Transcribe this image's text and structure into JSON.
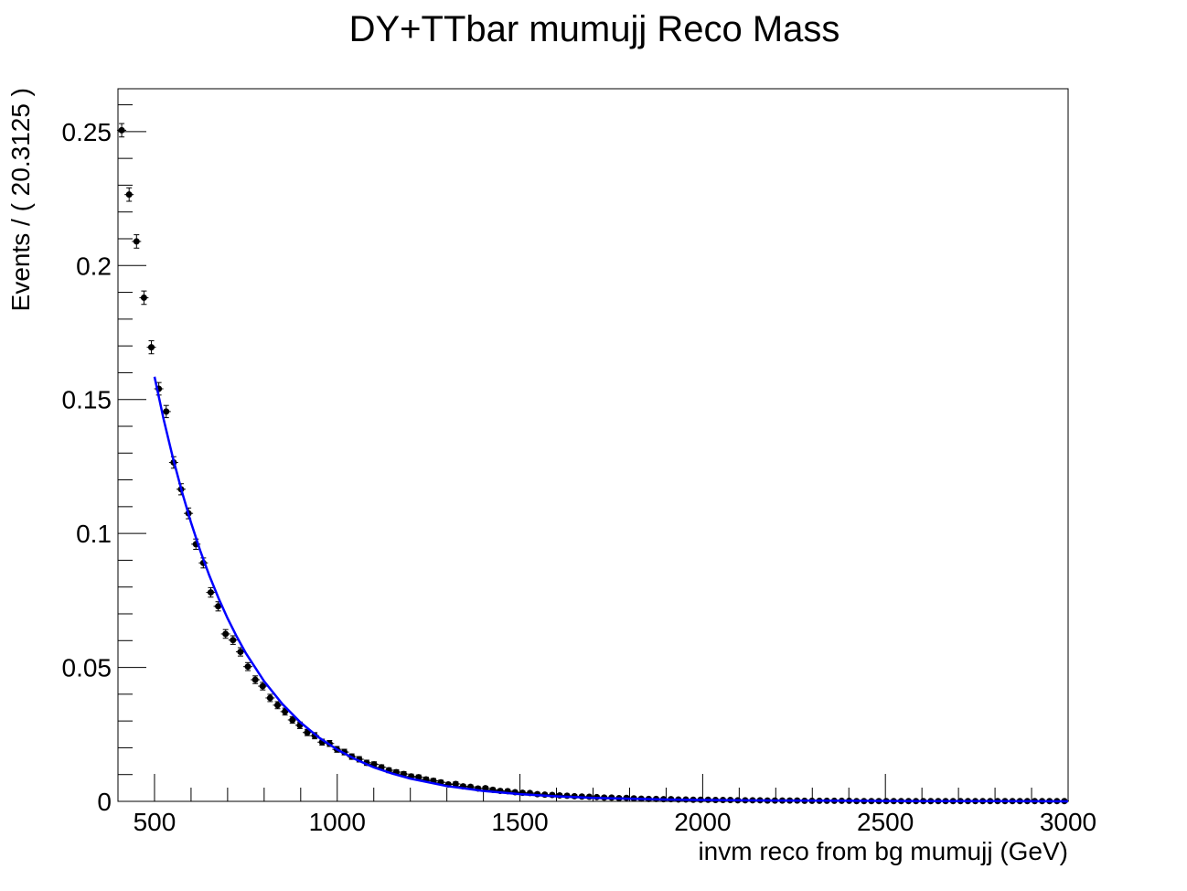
{
  "chart_data": {
    "type": "scatter",
    "title": "DY+TTbar mumujj Reco Mass",
    "xlabel": "invm reco from bg mumujj (GeV)",
    "ylabel": "Events / ( 20.3125 )",
    "xlim": [
      400,
      3000
    ],
    "ylim": [
      0,
      0.266
    ],
    "x_ticks": [
      500,
      1000,
      1500,
      2000,
      2500,
      3000
    ],
    "x_tick_labels": [
      "500",
      "1000",
      "1500",
      "2000",
      "2500",
      "3000"
    ],
    "y_ticks": [
      0,
      0.05,
      0.1,
      0.15,
      0.2,
      0.25
    ],
    "y_tick_labels": [
      "0",
      "0.05",
      "0.1",
      "0.15",
      "0.2",
      "0.25"
    ],
    "grid": false,
    "legend": "none",
    "series": [
      {
        "kind": "points_with_errors",
        "color": "#000000",
        "x": [
          410.2,
          430.5,
          450.8,
          471.1,
          491.4,
          511.7,
          532.0,
          552.3,
          572.7,
          593.0,
          613.3,
          633.6,
          653.9,
          674.2,
          694.5,
          714.8,
          735.2,
          755.5,
          775.8,
          796.1,
          816.4,
          836.7,
          857.0,
          877.3,
          897.7,
          918.0,
          938.3,
          958.6,
          978.9,
          999.2,
          1019.5,
          1039.8,
          1060.2,
          1080.5,
          1100.8,
          1121.1,
          1141.4,
          1161.7,
          1182.0,
          1202.3,
          1222.7,
          1243.0,
          1263.3,
          1283.6,
          1303.9,
          1324.2,
          1344.5,
          1364.8,
          1385.2,
          1405.5,
          1425.8,
          1446.1,
          1466.4,
          1486.7,
          1507.0,
          1527.3,
          1547.7,
          1568.0,
          1588.3,
          1608.6,
          1628.9,
          1649.2,
          1669.5,
          1689.8,
          1710.2,
          1730.5,
          1750.8,
          1771.1,
          1791.4,
          1811.7,
          1832.0,
          1852.3,
          1872.7,
          1893.0,
          1913.3,
          1933.6,
          1953.9,
          1974.2,
          1994.5,
          2014.8,
          2035.2,
          2055.5,
          2075.8,
          2096.1,
          2116.4,
          2136.7,
          2157.0,
          2177.3,
          2197.7,
          2218.0,
          2238.3,
          2258.6,
          2278.9,
          2299.2,
          2319.5,
          2339.8,
          2360.2,
          2380.5,
          2400.8,
          2421.1,
          2441.4,
          2461.7,
          2482.0,
          2502.3,
          2522.7,
          2543.0,
          2563.3,
          2583.6,
          2603.9,
          2624.2,
          2644.5,
          2664.8,
          2685.2,
          2705.5,
          2725.8,
          2746.1,
          2766.4,
          2786.7,
          2807.0,
          2827.3,
          2847.7,
          2868.0,
          2888.3,
          2908.6,
          2928.9,
          2949.2,
          2969.5,
          2989.8
        ],
        "y": [
          0.2505,
          0.2265,
          0.209,
          0.188,
          0.1695,
          0.154,
          0.1455,
          0.1265,
          0.1165,
          0.1075,
          0.096,
          0.089,
          0.078,
          0.0728,
          0.0625,
          0.0602,
          0.0558,
          0.0503,
          0.0454,
          0.043,
          0.0386,
          0.0359,
          0.0335,
          0.0304,
          0.0284,
          0.0257,
          0.0245,
          0.0221,
          0.0216,
          0.0194,
          0.0184,
          0.0167,
          0.0157,
          0.0144,
          0.0138,
          0.0127,
          0.0116,
          0.0109,
          0.0102,
          0.0093,
          0.009,
          0.0082,
          0.0077,
          0.0071,
          0.0063,
          0.0065,
          0.0056,
          0.0054,
          0.0048,
          0.0049,
          0.0043,
          0.0039,
          0.0038,
          0.0034,
          0.0032,
          0.0031,
          0.0027,
          0.0025,
          0.0024,
          0.0022,
          0.0021,
          0.0019,
          0.0018,
          0.0017,
          0.0016,
          0.0014,
          0.0014,
          0.0012,
          0.0013,
          0.0011,
          0.001,
          0.0009,
          0.0009,
          0.0008,
          0.0008,
          0.0007,
          0.0007,
          0.0006,
          0.0006,
          0.0006,
          0.0005,
          0.0005,
          0.0005,
          0.0004,
          0.0004,
          0.0004,
          0.0004,
          0.0003,
          0.0003,
          0.0003,
          0.0003,
          0.0003,
          0.0002,
          0.0002,
          0.0002,
          0.0002,
          0.0002,
          0.0002,
          0.0002,
          0.0001,
          0.0001,
          0.0001,
          0.0001,
          0.0001,
          0.0001,
          0.0001,
          0.0001,
          0.0001,
          0.0001,
          0.0001,
          0.0001,
          0.0001,
          0.0001,
          0.0001,
          0.0001,
          0.0001,
          0.0001,
          0.0001,
          0.0001,
          0.0001,
          0.0001,
          0.0001,
          0.0001,
          0.0001,
          0.0001,
          0.0001,
          0.0001,
          0.0001
        ],
        "error": 0.0025
      },
      {
        "kind": "fit_curve",
        "color": "#0000ff",
        "x": [
          500,
          525,
          550,
          575,
          600,
          625,
          650,
          675,
          700,
          725,
          750,
          800,
          850,
          900,
          950,
          1000,
          1050,
          1100,
          1150,
          1200,
          1300,
          1400,
          1500,
          1600,
          1700,
          1800,
          1900,
          2000,
          2200,
          2400,
          2600,
          2800,
          3000
        ],
        "y": [
          0.1585,
          0.1426,
          0.1284,
          0.1156,
          0.104,
          0.0936,
          0.0843,
          0.0759,
          0.0683,
          0.0615,
          0.0553,
          0.0448,
          0.0363,
          0.0294,
          0.0238,
          0.0193,
          0.0157,
          0.0127,
          0.0104,
          0.0085,
          0.0057,
          0.0039,
          0.0027,
          0.0019,
          0.0013,
          0.001,
          0.0007,
          0.0005,
          0.0003,
          0.0002,
          0.0001,
          0.0001,
          0.0
        ]
      }
    ]
  }
}
